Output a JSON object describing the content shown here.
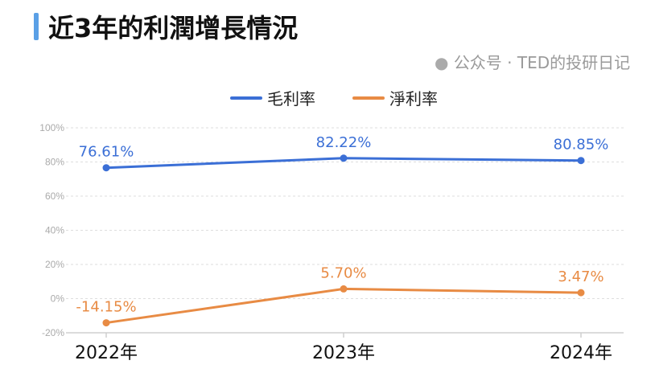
{
  "header": {
    "title": "近3年的利潤增長情況"
  },
  "watermark": "公众号 · TED的投研日记",
  "chart_data": {
    "type": "line",
    "categories": [
      "2022年",
      "2023年",
      "2024年"
    ],
    "ylim": [
      -20,
      100
    ],
    "yticks": [
      -20,
      0,
      20,
      40,
      60,
      80,
      100
    ],
    "ytick_labels": [
      "-20%",
      "0%",
      "20%",
      "40%",
      "60%",
      "80%",
      "100%"
    ],
    "grid": true,
    "legend_position": "top",
    "series": [
      {
        "name": "毛利率",
        "color": "#3b6fd6",
        "values": [
          76.61,
          82.22,
          80.85
        ],
        "labels": [
          "76.61%",
          "82.22%",
          "80.85%"
        ]
      },
      {
        "name": "淨利率",
        "color": "#e88b44",
        "values": [
          -14.15,
          5.7,
          3.47
        ],
        "labels": [
          "-14.15%",
          "5.70%",
          "3.47%"
        ]
      }
    ]
  }
}
